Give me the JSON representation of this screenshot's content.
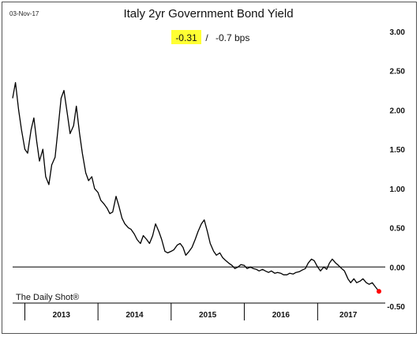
{
  "header": {
    "date": "03-Nov-17",
    "title": "Italy 2yr Government Bond Yield",
    "last_value": "-0.31",
    "separator": "/",
    "change": "-0.7 bps",
    "highlight_color": "#ffff33"
  },
  "branding": {
    "text": "The Daily Shot®"
  },
  "chart_data": {
    "type": "line",
    "title": "Italy 2yr Government Bond Yield",
    "xlabel": "",
    "ylabel": "",
    "x_range": [
      "2012-11-01",
      "2017-11-03"
    ],
    "ylim": [
      -0.5,
      3.0
    ],
    "y_ticks": [
      "3.00",
      "2.50",
      "2.00",
      "1.50",
      "1.00",
      "0.50",
      "0.00",
      "-0.50"
    ],
    "y_tick_values": [
      3.0,
      2.5,
      2.0,
      1.5,
      1.0,
      0.5,
      0.0,
      -0.5
    ],
    "x_tick_labels": [
      "2013",
      "2014",
      "2015",
      "2016",
      "2017"
    ],
    "zero_line": true,
    "grid": false,
    "line_color": "#000000",
    "end_marker_color": "#ff0000",
    "series": [
      {
        "x": [
          "2012-11-01",
          "2012-11-15",
          "2012-12-01",
          "2012-12-15",
          "2013-01-01",
          "2013-01-15",
          "2013-02-01",
          "2013-02-15",
          "2013-03-01",
          "2013-03-15",
          "2013-04-01",
          "2013-04-15",
          "2013-05-01",
          "2013-05-15",
          "2013-06-01",
          "2013-06-15",
          "2013-07-01",
          "2013-07-15",
          "2013-08-01",
          "2013-08-15",
          "2013-09-01",
          "2013-09-15",
          "2013-10-01",
          "2013-10-15",
          "2013-11-01",
          "2013-11-15",
          "2013-12-01",
          "2013-12-15",
          "2014-01-01",
          "2014-01-15",
          "2014-02-01",
          "2014-02-15",
          "2014-03-01",
          "2014-03-15",
          "2014-04-01",
          "2014-04-15",
          "2014-05-01",
          "2014-05-15",
          "2014-06-01",
          "2014-06-15",
          "2014-07-01",
          "2014-07-15",
          "2014-08-01",
          "2014-08-15",
          "2014-09-01",
          "2014-09-15",
          "2014-10-01",
          "2014-10-15",
          "2014-11-01",
          "2014-11-15",
          "2014-12-01",
          "2014-12-15",
          "2015-01-01",
          "2015-01-15",
          "2015-02-01",
          "2015-02-15",
          "2015-03-01",
          "2015-03-15",
          "2015-04-01",
          "2015-04-15",
          "2015-05-01",
          "2015-05-15",
          "2015-06-01",
          "2015-06-15",
          "2015-07-01",
          "2015-07-15",
          "2015-08-01",
          "2015-08-15",
          "2015-09-01",
          "2015-09-15",
          "2015-10-01",
          "2015-10-15",
          "2015-11-01",
          "2015-11-15",
          "2015-12-01",
          "2015-12-15",
          "2016-01-01",
          "2016-01-15",
          "2016-02-01",
          "2016-02-15",
          "2016-03-01",
          "2016-03-15",
          "2016-04-01",
          "2016-04-15",
          "2016-05-01",
          "2016-05-15",
          "2016-06-01",
          "2016-06-15",
          "2016-07-01",
          "2016-07-15",
          "2016-08-01",
          "2016-08-15",
          "2016-09-01",
          "2016-09-15",
          "2016-10-01",
          "2016-10-15",
          "2016-11-01",
          "2016-11-15",
          "2016-12-01",
          "2016-12-15",
          "2017-01-01",
          "2017-01-15",
          "2017-02-01",
          "2017-02-15",
          "2017-03-01",
          "2017-03-15",
          "2017-04-01",
          "2017-04-15",
          "2017-05-01",
          "2017-05-15",
          "2017-06-01",
          "2017-06-15",
          "2017-07-01",
          "2017-07-15",
          "2017-08-01",
          "2017-08-15",
          "2017-09-01",
          "2017-09-15",
          "2017-10-01",
          "2017-10-15",
          "2017-11-03"
        ],
        "values": [
          2.15,
          2.35,
          2.0,
          1.75,
          1.5,
          1.45,
          1.75,
          1.9,
          1.6,
          1.35,
          1.5,
          1.15,
          1.05,
          1.3,
          1.4,
          1.75,
          2.15,
          2.25,
          1.95,
          1.7,
          1.8,
          2.05,
          1.7,
          1.45,
          1.2,
          1.1,
          1.15,
          1.0,
          0.95,
          0.85,
          0.8,
          0.75,
          0.68,
          0.7,
          0.9,
          0.78,
          0.62,
          0.55,
          0.5,
          0.48,
          0.42,
          0.35,
          0.3,
          0.4,
          0.35,
          0.3,
          0.4,
          0.55,
          0.45,
          0.35,
          0.2,
          0.18,
          0.2,
          0.22,
          0.28,
          0.3,
          0.25,
          0.15,
          0.2,
          0.25,
          0.35,
          0.45,
          0.55,
          0.6,
          0.45,
          0.3,
          0.2,
          0.15,
          0.18,
          0.12,
          0.08,
          0.05,
          0.02,
          -0.02,
          0.0,
          0.03,
          0.02,
          -0.02,
          0.0,
          -0.02,
          -0.03,
          -0.05,
          -0.03,
          -0.05,
          -0.07,
          -0.05,
          -0.08,
          -0.07,
          -0.08,
          -0.1,
          -0.1,
          -0.08,
          -0.09,
          -0.07,
          -0.06,
          -0.04,
          -0.02,
          0.05,
          0.1,
          0.08,
          0.0,
          -0.05,
          0.0,
          -0.03,
          0.05,
          0.1,
          0.05,
          0.02,
          -0.02,
          -0.05,
          -0.15,
          -0.2,
          -0.15,
          -0.2,
          -0.18,
          -0.15,
          -0.2,
          -0.22,
          -0.2,
          -0.25,
          -0.31
        ]
      }
    ]
  }
}
